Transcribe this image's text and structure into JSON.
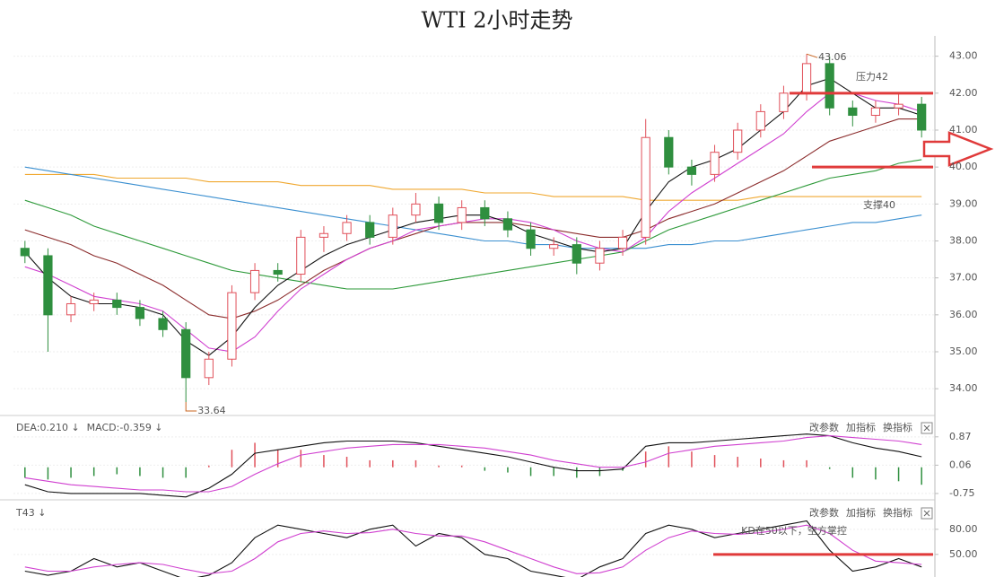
{
  "chart_data": [
    {
      "type": "candlestick",
      "title": "WTI 2小时走势",
      "open": [
        37.8,
        37.6,
        36.0,
        36.3,
        36.4,
        36.2,
        35.9,
        35.6,
        34.3,
        34.8,
        36.6,
        37.2,
        37.1,
        38.1,
        38.2,
        38.5,
        38.1,
        38.7,
        39.0,
        38.5,
        38.9,
        38.6,
        38.3,
        37.8,
        37.9,
        37.4,
        37.8,
        38.1,
        40.8,
        40.0,
        39.8,
        40.4,
        41.0,
        41.5,
        42.0,
        42.8,
        41.6,
        41.4,
        41.6,
        41.7
      ],
      "high": [
        38.0,
        37.8,
        36.5,
        36.6,
        36.6,
        36.4,
        36.1,
        35.8,
        35.0,
        36.8,
        37.4,
        37.4,
        38.3,
        38.4,
        38.7,
        38.7,
        38.9,
        39.3,
        39.2,
        39.1,
        39.1,
        38.8,
        38.5,
        38.1,
        38.1,
        38.0,
        38.3,
        41.3,
        41.0,
        40.2,
        40.6,
        41.2,
        41.7,
        42.2,
        43.06,
        43.0,
        41.8,
        41.8,
        42.0,
        41.9
      ],
      "low": [
        37.4,
        35.0,
        35.8,
        36.1,
        36.0,
        35.7,
        35.4,
        33.64,
        34.1,
        34.6,
        36.4,
        36.9,
        36.9,
        37.7,
        38.0,
        37.9,
        37.9,
        38.5,
        38.3,
        38.3,
        38.4,
        38.1,
        37.6,
        37.6,
        37.1,
        37.2,
        37.6,
        37.9,
        39.8,
        39.5,
        39.6,
        40.2,
        40.8,
        41.3,
        41.8,
        41.4,
        41.1,
        41.2,
        41.4,
        40.8
      ],
      "close": [
        37.6,
        36.0,
        36.3,
        36.4,
        36.2,
        35.9,
        35.6,
        34.3,
        34.8,
        36.6,
        37.2,
        37.1,
        38.1,
        38.2,
        38.5,
        38.1,
        38.7,
        39.0,
        38.5,
        38.9,
        38.6,
        38.3,
        37.8,
        37.9,
        37.4,
        37.8,
        38.1,
        40.8,
        40.0,
        39.8,
        40.4,
        41.0,
        41.5,
        42.0,
        42.8,
        41.6,
        41.4,
        41.6,
        41.7,
        41.0
      ],
      "up_color": "#e0505a",
      "down_color": "#2f8f3f",
      "series": [
        {
          "color": "#f0a830",
          "values": [
            39.8,
            39.8,
            39.8,
            39.8,
            39.7,
            39.7,
            39.7,
            39.7,
            39.6,
            39.6,
            39.6,
            39.6,
            39.5,
            39.5,
            39.5,
            39.5,
            39.4,
            39.4,
            39.4,
            39.4,
            39.3,
            39.3,
            39.3,
            39.2,
            39.2,
            39.2,
            39.2,
            39.1,
            39.1,
            39.1,
            39.1,
            39.1,
            39.2,
            39.2,
            39.2,
            39.2,
            39.2,
            39.2,
            39.2,
            39.2
          ]
        },
        {
          "color": "#3a8fd0",
          "values": [
            40.0,
            39.9,
            39.8,
            39.7,
            39.6,
            39.5,
            39.4,
            39.3,
            39.2,
            39.1,
            39.0,
            38.9,
            38.8,
            38.7,
            38.6,
            38.5,
            38.4,
            38.3,
            38.2,
            38.1,
            38.0,
            38.0,
            37.9,
            37.9,
            37.8,
            37.8,
            37.8,
            37.8,
            37.9,
            37.9,
            38.0,
            38.0,
            38.1,
            38.2,
            38.3,
            38.4,
            38.5,
            38.5,
            38.6,
            38.7
          ]
        },
        {
          "color": "#2e9a3a",
          "values": [
            39.1,
            38.9,
            38.7,
            38.4,
            38.2,
            38.0,
            37.8,
            37.6,
            37.4,
            37.2,
            37.1,
            37.0,
            36.9,
            36.8,
            36.7,
            36.7,
            36.7,
            36.8,
            36.9,
            37.0,
            37.1,
            37.2,
            37.3,
            37.4,
            37.5,
            37.6,
            37.7,
            38.0,
            38.3,
            38.5,
            38.7,
            38.9,
            39.1,
            39.3,
            39.5,
            39.7,
            39.8,
            39.9,
            40.1,
            40.2
          ]
        },
        {
          "color": "#8b2c2c",
          "values": [
            38.3,
            38.1,
            37.9,
            37.6,
            37.4,
            37.1,
            36.8,
            36.4,
            36.0,
            35.9,
            36.1,
            36.4,
            36.8,
            37.2,
            37.5,
            37.8,
            38.0,
            38.2,
            38.4,
            38.5,
            38.5,
            38.5,
            38.4,
            38.3,
            38.2,
            38.1,
            38.1,
            38.3,
            38.6,
            38.8,
            39.0,
            39.3,
            39.6,
            39.9,
            40.3,
            40.7,
            40.9,
            41.1,
            41.3,
            41.3
          ]
        },
        {
          "color": "#d040d0",
          "values": [
            37.3,
            37.1,
            36.8,
            36.5,
            36.4,
            36.3,
            36.1,
            35.6,
            35.1,
            35.0,
            35.4,
            36.1,
            36.7,
            37.1,
            37.5,
            37.8,
            38.0,
            38.3,
            38.4,
            38.5,
            38.6,
            38.6,
            38.5,
            38.3,
            38.0,
            37.8,
            37.7,
            38.1,
            38.8,
            39.3,
            39.7,
            40.1,
            40.5,
            40.9,
            41.5,
            42.0,
            42.0,
            41.8,
            41.7,
            41.5
          ]
        },
        {
          "color": "#111111",
          "values": [
            37.7,
            37.0,
            36.5,
            36.3,
            36.3,
            36.2,
            36.0,
            35.3,
            34.9,
            35.4,
            36.2,
            36.8,
            37.2,
            37.6,
            37.9,
            38.1,
            38.3,
            38.5,
            38.6,
            38.7,
            38.7,
            38.5,
            38.2,
            38.0,
            37.8,
            37.7,
            37.8,
            38.8,
            39.6,
            40.0,
            40.2,
            40.5,
            41.0,
            41.5,
            42.2,
            42.4,
            42.0,
            41.6,
            41.6,
            41.4
          ]
        }
      ],
      "ylim": [
        33.3,
        43.55
      ],
      "yticks": [
        {
          "value": 43,
          "label": "43.00"
        },
        {
          "value": 42,
          "label": "42.00"
        },
        {
          "value": 41,
          "label": "41.00"
        },
        {
          "value": 40,
          "label": "40.00"
        },
        {
          "value": 39,
          "label": "39.00"
        },
        {
          "value": 38,
          "label": "38.00"
        },
        {
          "value": 37,
          "label": "37.00"
        },
        {
          "value": 36,
          "label": "36.00"
        },
        {
          "value": 35,
          "label": "35.00"
        },
        {
          "value": 34,
          "label": "34.00"
        }
      ],
      "levels": [
        {
          "label": "压力42",
          "value": 42
        },
        {
          "label": "支撑40",
          "value": 40
        }
      ],
      "level_color": "#e03a3a",
      "max_label": "43.06",
      "min_label": "33.64"
    },
    {
      "type": "macd",
      "indicators": [
        {
          "label": "DEA:0.210 ↓",
          "color": "#c03cc0"
        },
        {
          "label": "MACD:-0.359 ↓",
          "color": "#555555"
        }
      ],
      "toolbar": [
        "改参数",
        "加指标",
        "换指标"
      ],
      "bars": [
        -0.3,
        -0.35,
        -0.3,
        -0.25,
        -0.2,
        -0.25,
        -0.3,
        -0.3,
        0.05,
        0.5,
        0.7,
        0.5,
        0.5,
        0.35,
        0.3,
        0.2,
        0.2,
        0.2,
        0.05,
        0.05,
        -0.1,
        -0.15,
        -0.25,
        -0.25,
        -0.3,
        -0.25,
        -0.1,
        0.45,
        0.6,
        0.45,
        0.35,
        0.3,
        0.25,
        0.2,
        0.2,
        -0.05,
        -0.3,
        -0.35,
        -0.4,
        -0.5
      ],
      "up_color": "#e0505a",
      "down_color": "#2f8f3f",
      "series": [
        {
          "color": "#111111",
          "values": [
            -0.5,
            -0.7,
            -0.75,
            -0.75,
            -0.75,
            -0.75,
            -0.8,
            -0.85,
            -0.6,
            -0.2,
            0.4,
            0.5,
            0.6,
            0.7,
            0.75,
            0.75,
            0.75,
            0.7,
            0.6,
            0.5,
            0.4,
            0.3,
            0.15,
            0.0,
            -0.1,
            -0.1,
            -0.05,
            0.6,
            0.7,
            0.7,
            0.75,
            0.8,
            0.85,
            0.9,
            0.95,
            0.9,
            0.7,
            0.55,
            0.45,
            0.3
          ]
        },
        {
          "color": "#d040d0",
          "values": [
            -0.3,
            -0.4,
            -0.5,
            -0.55,
            -0.6,
            -0.65,
            -0.65,
            -0.7,
            -0.7,
            -0.55,
            -0.2,
            0.1,
            0.35,
            0.45,
            0.55,
            0.6,
            0.65,
            0.65,
            0.65,
            0.6,
            0.55,
            0.45,
            0.35,
            0.2,
            0.1,
            0.0,
            0.0,
            0.15,
            0.4,
            0.5,
            0.6,
            0.65,
            0.7,
            0.75,
            0.85,
            0.9,
            0.85,
            0.8,
            0.75,
            0.65
          ]
        }
      ],
      "ylim": [
        -0.88,
        1.43
      ],
      "yticks": [
        0.87,
        0.06,
        -0.75
      ]
    },
    {
      "type": "kd",
      "indicators": [
        {
          "label": "T43 ↓",
          "color": "#c03cc0"
        }
      ],
      "toolbar": [
        "改参数",
        "加指标",
        "换指标"
      ],
      "series": [
        {
          "color": "#111111",
          "values": [
            30,
            25,
            30,
            45,
            35,
            40,
            30,
            20,
            25,
            40,
            70,
            85,
            80,
            75,
            70,
            80,
            85,
            60,
            75,
            70,
            50,
            45,
            30,
            25,
            20,
            35,
            45,
            75,
            85,
            80,
            70,
            75,
            80,
            85,
            90,
            55,
            30,
            35,
            45,
            35
          ]
        },
        {
          "color": "#d040d0",
          "values": [
            35,
            30,
            30,
            35,
            38,
            40,
            38,
            32,
            27,
            30,
            45,
            65,
            75,
            78,
            75,
            76,
            80,
            75,
            72,
            72,
            65,
            55,
            45,
            35,
            27,
            28,
            35,
            55,
            70,
            78,
            75,
            74,
            76,
            80,
            85,
            75,
            55,
            42,
            40,
            38
          ]
        }
      ],
      "ylim": [
        23,
        112
      ],
      "yticks": [
        {
          "value": 80,
          "label": "80.00"
        },
        {
          "value": 50,
          "label": "50.00"
        }
      ],
      "levels": [
        {
          "label": "KD在50以下，空方掌控",
          "value": 50
        }
      ],
      "level_color": "#e03a3a"
    }
  ]
}
